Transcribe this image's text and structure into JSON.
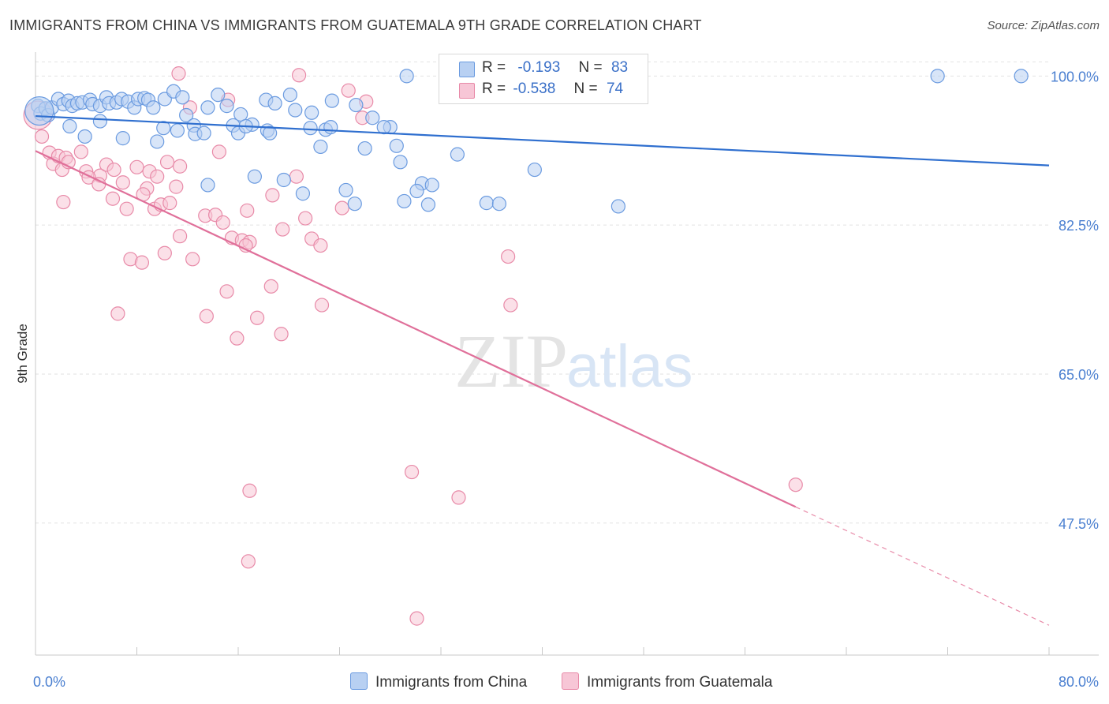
{
  "title": "IMMIGRANTS FROM CHINA VS IMMIGRANTS FROM GUATEMALA 9TH GRADE CORRELATION CHART",
  "source": "Source: ZipAtlas.com",
  "watermark": {
    "zip": "ZIP",
    "atlas": "atlas"
  },
  "legend": {
    "china": {
      "r_label": "R =",
      "r_value": "-0.193",
      "n_label": "N =",
      "n_value": "83"
    },
    "guatemala": {
      "r_label": "R =",
      "r_value": "-0.538",
      "n_label": "N =",
      "n_value": "74"
    }
  },
  "chart_data": {
    "type": "scatter",
    "title": "IMMIGRANTS FROM CHINA VS IMMIGRANTS FROM GUATEMALA 9TH GRADE CORRELATION CHART",
    "xlabel": "",
    "ylabel": "9th Grade",
    "xlim": [
      0,
      80
    ],
    "ylim": [
      32,
      103
    ],
    "x_tick_labels": [
      "0.0%",
      "80.0%"
    ],
    "y_ticks": [
      47.5,
      65.0,
      82.5,
      100.0
    ],
    "y_tick_labels": [
      "47.5%",
      "65.0%",
      "82.5%",
      "100.0%"
    ],
    "grid": true,
    "legend_position": "top-center",
    "series": [
      {
        "name": "Immigrants from China",
        "color": "#6b9be0",
        "fill": "#b8d0f2",
        "trend": {
          "x": [
            0,
            80
          ],
          "y": [
            95.3,
            89.5
          ]
        },
        "points": [
          [
            0.2,
            96.5
          ],
          [
            0.4,
            95.6
          ],
          [
            0.8,
            96.2
          ],
          [
            1.0,
            95.4
          ],
          [
            1.3,
            96.3
          ],
          [
            1.8,
            97.3
          ],
          [
            2.2,
            96.7
          ],
          [
            2.6,
            97.1
          ],
          [
            2.9,
            96.5
          ],
          [
            3.3,
            96.8
          ],
          [
            3.7,
            96.9
          ],
          [
            4.3,
            97.2
          ],
          [
            4.5,
            96.7
          ],
          [
            5.1,
            96.5
          ],
          [
            5.6,
            97.5
          ],
          [
            5.8,
            96.8
          ],
          [
            6.4,
            96.9
          ],
          [
            6.8,
            97.3
          ],
          [
            7.3,
            97.0
          ],
          [
            7.8,
            96.3
          ],
          [
            8.1,
            97.3
          ],
          [
            8.6,
            97.4
          ],
          [
            8.9,
            97.2
          ],
          [
            9.3,
            96.3
          ],
          [
            10.2,
            97.3
          ],
          [
            10.9,
            98.2
          ],
          [
            11.6,
            97.5
          ],
          [
            11.9,
            95.4
          ],
          [
            12.5,
            94.2
          ],
          [
            13.6,
            96.3
          ],
          [
            14.4,
            97.8
          ],
          [
            15.1,
            96.5
          ],
          [
            16.2,
            95.5
          ],
          [
            17.1,
            94.3
          ],
          [
            18.2,
            97.2
          ],
          [
            18.9,
            96.8
          ],
          [
            20.1,
            97.8
          ],
          [
            20.5,
            96.0
          ],
          [
            21.8,
            95.7
          ],
          [
            23.4,
            97.1
          ],
          [
            25.3,
            96.6
          ],
          [
            26.6,
            95.1
          ],
          [
            28.0,
            94.0
          ],
          [
            2.7,
            94.1
          ],
          [
            3.9,
            92.9
          ],
          [
            5.1,
            94.7
          ],
          [
            6.9,
            92.7
          ],
          [
            9.6,
            92.3
          ],
          [
            10.1,
            93.9
          ],
          [
            11.2,
            93.6
          ],
          [
            12.6,
            93.2
          ],
          [
            13.3,
            93.3
          ],
          [
            15.6,
            94.2
          ],
          [
            16.0,
            93.3
          ],
          [
            16.6,
            94.1
          ],
          [
            18.3,
            93.6
          ],
          [
            18.5,
            93.3
          ],
          [
            21.7,
            93.9
          ],
          [
            22.5,
            91.7
          ],
          [
            22.9,
            93.7
          ],
          [
            23.3,
            94.0
          ],
          [
            26.0,
            91.5
          ],
          [
            27.5,
            94.0
          ],
          [
            28.5,
            91.8
          ],
          [
            28.8,
            89.9
          ],
          [
            33.3,
            90.8
          ],
          [
            17.3,
            88.2
          ],
          [
            19.6,
            87.8
          ],
          [
            13.6,
            87.2
          ],
          [
            21.1,
            86.2
          ],
          [
            24.5,
            86.6
          ],
          [
            25.2,
            85.0
          ],
          [
            29.1,
            85.3
          ],
          [
            30.5,
            87.4
          ],
          [
            30.1,
            86.5
          ],
          [
            31.3,
            87.2
          ],
          [
            31.0,
            84.9
          ],
          [
            35.6,
            85.1
          ],
          [
            36.6,
            85.0
          ],
          [
            39.4,
            89.0
          ],
          [
            46.0,
            84.7
          ],
          [
            29.3,
            100.0
          ],
          [
            71.2,
            100.0
          ],
          [
            77.8,
            100.0
          ]
        ],
        "big_points": [
          [
            0.3,
            95.9
          ]
        ]
      },
      {
        "name": "Immigrants from Guatemala",
        "color": "#e88aa8",
        "fill": "#f7c6d6",
        "trend": {
          "x": [
            0,
            60
          ],
          "y": [
            91.2,
            49.4
          ]
        },
        "trend_dashed": {
          "x": [
            60,
            80
          ],
          "y": [
            49.4,
            35.5
          ]
        },
        "points": [
          [
            0.5,
            92.9
          ],
          [
            1.1,
            91.0
          ],
          [
            1.4,
            89.7
          ],
          [
            1.8,
            90.6
          ],
          [
            2.1,
            89.0
          ],
          [
            2.4,
            90.4
          ],
          [
            2.6,
            89.9
          ],
          [
            3.6,
            91.1
          ],
          [
            4.0,
            88.8
          ],
          [
            5.1,
            88.3
          ],
          [
            5.6,
            89.6
          ],
          [
            6.2,
            89.0
          ],
          [
            6.9,
            87.5
          ],
          [
            8.0,
            89.3
          ],
          [
            8.8,
            86.8
          ],
          [
            9.0,
            88.8
          ],
          [
            9.6,
            88.2
          ],
          [
            10.4,
            89.9
          ],
          [
            11.1,
            87.0
          ],
          [
            11.4,
            89.4
          ],
          [
            12.2,
            96.3
          ],
          [
            14.5,
            91.1
          ],
          [
            15.2,
            97.2
          ],
          [
            16.7,
            84.2
          ],
          [
            18.7,
            86.0
          ],
          [
            20.6,
            88.2
          ],
          [
            21.3,
            83.3
          ],
          [
            24.2,
            84.5
          ],
          [
            26.1,
            97.0
          ],
          [
            25.8,
            95.1
          ],
          [
            2.2,
            85.2
          ],
          [
            4.2,
            88.1
          ],
          [
            5.0,
            87.3
          ],
          [
            6.1,
            85.6
          ],
          [
            7.2,
            84.4
          ],
          [
            8.5,
            86.1
          ],
          [
            9.4,
            84.4
          ],
          [
            9.9,
            84.9
          ],
          [
            10.6,
            85.1
          ],
          [
            11.4,
            81.2
          ],
          [
            13.4,
            83.6
          ],
          [
            14.2,
            83.7
          ],
          [
            14.8,
            82.8
          ],
          [
            15.5,
            81.0
          ],
          [
            16.3,
            80.7
          ],
          [
            16.9,
            80.5
          ],
          [
            19.5,
            82.0
          ],
          [
            21.8,
            80.9
          ],
          [
            22.5,
            80.1
          ],
          [
            7.5,
            78.5
          ],
          [
            8.4,
            78.1
          ],
          [
            10.2,
            79.2
          ],
          [
            12.4,
            78.5
          ],
          [
            15.1,
            74.7
          ],
          [
            16.6,
            80.1
          ],
          [
            18.6,
            75.3
          ],
          [
            22.6,
            73.1
          ],
          [
            37.3,
            78.8
          ],
          [
            37.5,
            73.1
          ],
          [
            6.5,
            72.1
          ],
          [
            13.5,
            71.8
          ],
          [
            17.5,
            71.6
          ],
          [
            19.4,
            69.7
          ],
          [
            15.9,
            69.2
          ],
          [
            29.7,
            53.5
          ],
          [
            33.4,
            50.5
          ],
          [
            16.9,
            51.3
          ],
          [
            16.8,
            43.0
          ],
          [
            30.1,
            36.3
          ],
          [
            60.0,
            52.0
          ],
          [
            20.8,
            100.1
          ],
          [
            36.1,
            99.4
          ],
          [
            24.7,
            98.3
          ],
          [
            11.3,
            100.3
          ]
        ],
        "big_points": [
          [
            0.2,
            95.4
          ]
        ]
      }
    ]
  },
  "bottom_legend": [
    "Immigrants from China",
    "Immigrants from Guatemala"
  ]
}
